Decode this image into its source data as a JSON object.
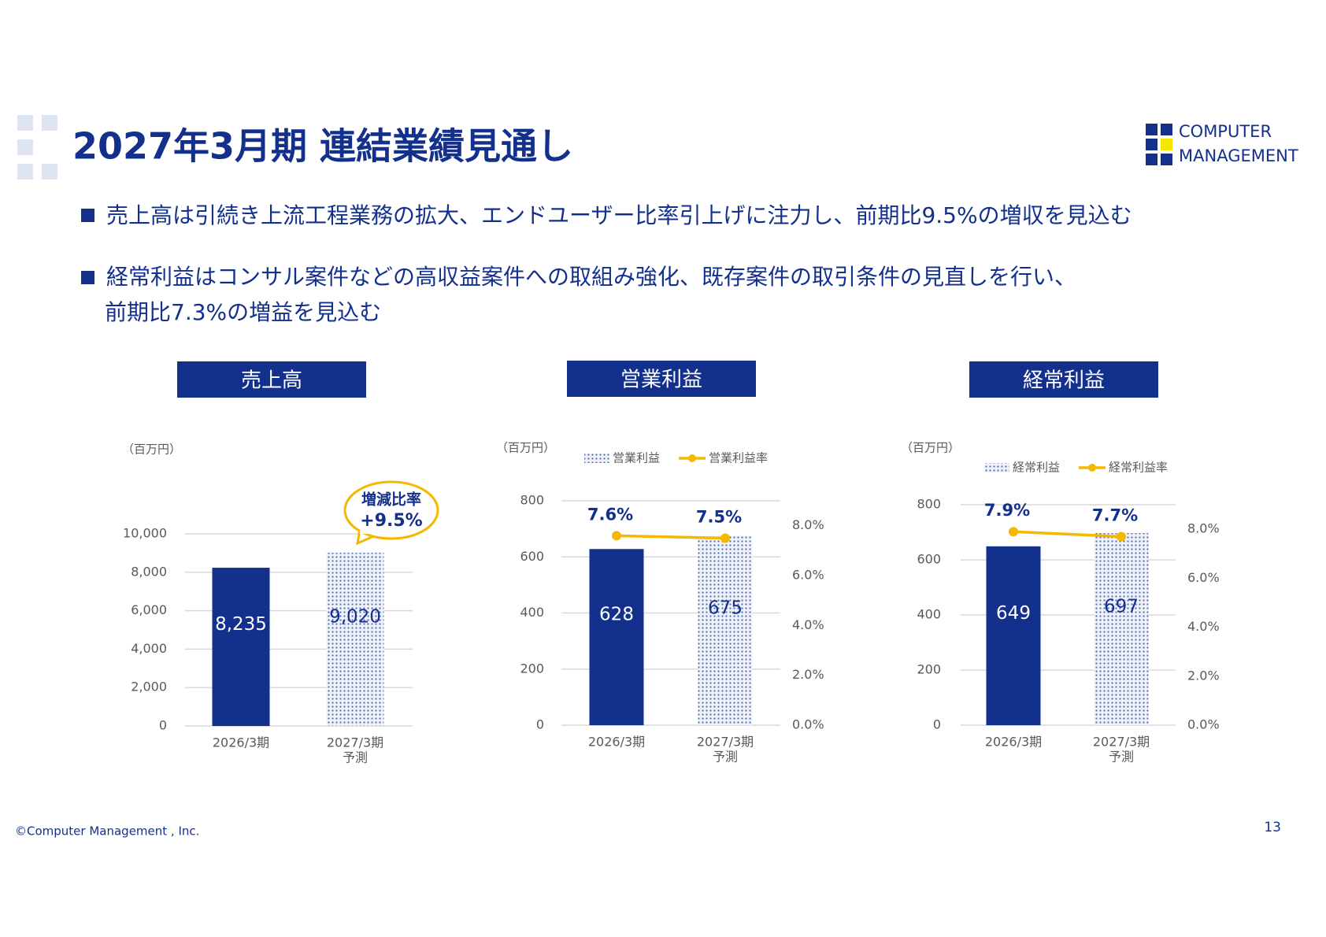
{
  "slide": {
    "title": "2027年3月期  連結業績見通し",
    "logo": [
      "COMPUTER",
      "MANAGEMENT"
    ],
    "bullets": [
      [
        "売上高は引続き上流工程業務の拡大、エンドユーザー比率引上げに注力し、前期比9.5%の増収を見込む"
      ],
      [
        "経常利益はコンサル案件などの高収益案件への取組み強化、既存案件の取引条件の見直しを行い、",
        "前期比7.3%の増益を見込む"
      ]
    ],
    "footer": "©Computer Management , Inc.",
    "page_number": "13"
  },
  "chart_data": [
    {
      "type": "bar",
      "title": "売上高",
      "unit": "（百万円）",
      "categories": [
        "2026/3期",
        "2027/3期"
      ],
      "category_sublabels": [
        null,
        "予測"
      ],
      "series": [
        {
          "color": "#12308c",
          "values": [
            8235,
            9020
          ],
          "value_labels": [
            "8,235",
            "9,020"
          ],
          "styles": [
            "solid",
            "dotted"
          ]
        }
      ],
      "ylim": [
        0,
        10000
      ],
      "yticks": [
        0,
        {
          "value": 2000,
          "label": "2,000"
        },
        {
          "value": 4000,
          "label": "4,000"
        },
        {
          "value": 6000,
          "label": "6,000"
        },
        {
          "value": 8000,
          "label": "8,000"
        },
        {
          "value": 10000,
          "label": "10,000"
        }
      ],
      "grid": true,
      "annotation": {
        "title": "増減比率",
        "text": "+9.5%",
        "color": "#f5b800"
      }
    },
    {
      "type": "bar_line",
      "title": "営業利益",
      "unit": "（百万円）",
      "categories": [
        "2026/3期",
        "2027/3期"
      ],
      "category_sublabels": [
        null,
        "予測"
      ],
      "series": [
        {
          "name": "営業利益",
          "color": "#12308c",
          "values": [
            628,
            675
          ],
          "styles": [
            "solid",
            "dotted"
          ]
        },
        {
          "name": "営業利益率",
          "color": "#f5b800",
          "values": [
            7.6,
            7.5
          ],
          "value_labels": [
            "7.6%",
            "7.5%"
          ],
          "axis": "y2"
        }
      ],
      "ylim": [
        0,
        800
      ],
      "yticks": [
        0,
        200,
        400,
        600,
        800
      ],
      "y2lim": [
        0,
        9
      ],
      "y2ticks": [
        {
          "value": 0,
          "label": "0.0%"
        },
        {
          "value": 2,
          "label": "2.0%"
        },
        {
          "value": 4,
          "label": "4.0%"
        },
        {
          "value": 6,
          "label": "6.0%"
        },
        {
          "value": 8,
          "label": "8.0%"
        }
      ],
      "grid": true
    },
    {
      "type": "bar_line",
      "title": "経常利益",
      "unit": "（百万円）",
      "categories": [
        "2026/3期",
        "2027/3期"
      ],
      "category_sublabels": [
        null,
        "予測"
      ],
      "series": [
        {
          "name": "経常利益",
          "color": "#12308c",
          "values": [
            649,
            697
          ],
          "styles": [
            "solid",
            "dotted"
          ]
        },
        {
          "name": "経常利益率",
          "color": "#f5b800",
          "values": [
            7.9,
            7.7
          ],
          "value_labels": [
            "7.9%",
            "7.7%"
          ],
          "axis": "y2"
        }
      ],
      "ylim": [
        0,
        800
      ],
      "yticks": [
        0,
        200,
        400,
        600,
        800
      ],
      "y2lim": [
        0,
        9
      ],
      "y2ticks": [
        {
          "value": 0,
          "label": "0.0%"
        },
        {
          "value": 2,
          "label": "2.0%"
        },
        {
          "value": 4,
          "label": "4.0%"
        },
        {
          "value": 6,
          "label": "6.0%"
        },
        {
          "value": 8,
          "label": "8.0%"
        }
      ],
      "grid": true
    }
  ]
}
